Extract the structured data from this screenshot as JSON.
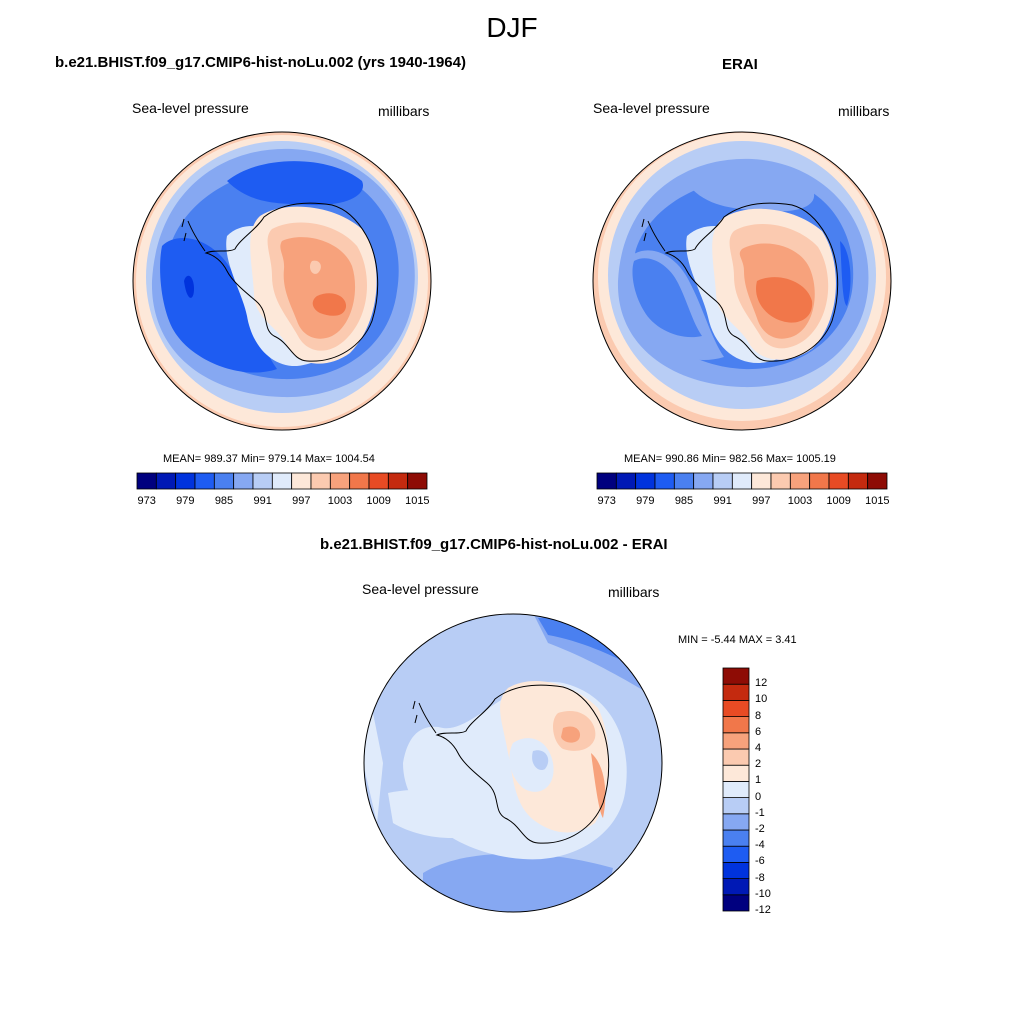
{
  "figure": {
    "season": "DJF"
  },
  "colors": {
    "palette": [
      "#00007f",
      "#0019b5",
      "#0033dd",
      "#1e5cf2",
      "#4a80f0",
      "#86a8f2",
      "#b8cdf5",
      "#e0ebfb",
      "#fde8d9",
      "#fbcab0",
      "#f7a27c",
      "#f1774a",
      "#e84b24",
      "#c42a0f",
      "#8e0c05"
    ],
    "diff_palette": [
      "#00007f",
      "#0019b5",
      "#0033dd",
      "#1e5cf2",
      "#4a80f0",
      "#86a8f2",
      "#b8cdf5",
      "#e0ebfb",
      "#fde8d9",
      "#fbcab0",
      "#f7a27c",
      "#f1774a",
      "#e84b24",
      "#c42a0f",
      "#8e0c05"
    ]
  },
  "panels": [
    {
      "title": "b.e21.BHIST.f09_g17.CMIP6-hist-noLu.002 (yrs 1940-1964)",
      "left_label": "Sea-level pressure",
      "right_label": "millibars",
      "stats": "MEAN= 989.37  Min= 979.14  Max= 1004.54",
      "colorbar_ticks": [
        "973",
        "979",
        "985",
        "991",
        "997",
        "1003",
        "1009",
        "1015"
      ]
    },
    {
      "title": "ERAI",
      "left_label": "Sea-level pressure",
      "right_label": "millibars",
      "stats": "MEAN= 990.86  Min= 982.56  Max= 1005.19",
      "colorbar_ticks": [
        "973",
        "979",
        "985",
        "991",
        "997",
        "1003",
        "1009",
        "1015"
      ]
    },
    {
      "title": "b.e21.BHIST.f09_g17.CMIP6-hist-noLu.002 - ERAI",
      "left_label": "Sea-level pressure",
      "right_label": "millibars",
      "stats": "MIN =  -5.44 MAX =   3.41",
      "colorbar_ticks": [
        "12",
        "10",
        "8",
        "6",
        "4",
        "2",
        "1",
        "0",
        "-1",
        "-2",
        "-4",
        "-6",
        "-8",
        "-10",
        "-12"
      ]
    }
  ]
}
